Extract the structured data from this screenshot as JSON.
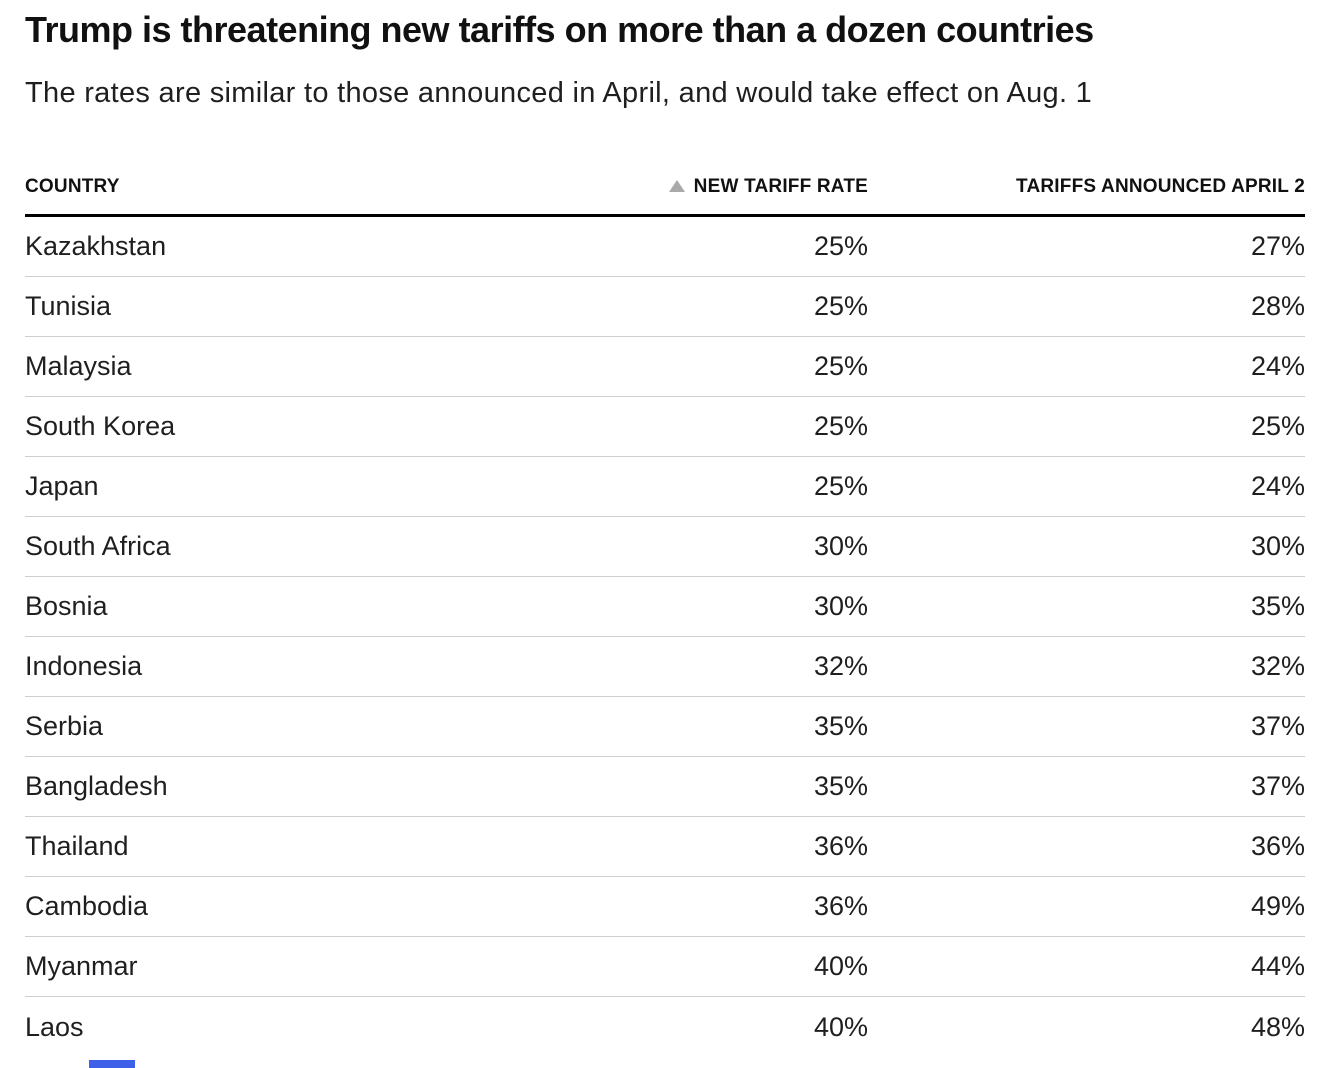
{
  "header": {
    "title": "Trump is threatening new tariffs on more than a dozen countries",
    "subtitle": "The rates are similar to those announced in April, and would take effect on Aug. 1"
  },
  "chart_data": {
    "type": "table",
    "title": "Trump is threatening new tariffs on more than a dozen countries",
    "subtitle": "The rates are similar to those announced in April, and would take effect on Aug. 1",
    "columns": [
      "COUNTRY",
      "NEW TARIFF RATE",
      "TARIFFS ANNOUNCED APRIL 2"
    ],
    "sort": {
      "column": "NEW TARIFF RATE",
      "direction": "ascending",
      "icon": "triangle-up-icon"
    },
    "rows": [
      {
        "country": "Kazakhstan",
        "new_tariff_rate": "25%",
        "tariffs_announced_april_2": "27%"
      },
      {
        "country": "Tunisia",
        "new_tariff_rate": "25%",
        "tariffs_announced_april_2": "28%"
      },
      {
        "country": "Malaysia",
        "new_tariff_rate": "25%",
        "tariffs_announced_april_2": "24%"
      },
      {
        "country": "South Korea",
        "new_tariff_rate": "25%",
        "tariffs_announced_april_2": "25%"
      },
      {
        "country": "Japan",
        "new_tariff_rate": "25%",
        "tariffs_announced_april_2": "24%"
      },
      {
        "country": "South Africa",
        "new_tariff_rate": "30%",
        "tariffs_announced_april_2": "30%"
      },
      {
        "country": "Bosnia",
        "new_tariff_rate": "30%",
        "tariffs_announced_april_2": "35%"
      },
      {
        "country": "Indonesia",
        "new_tariff_rate": "32%",
        "tariffs_announced_april_2": "32%"
      },
      {
        "country": "Serbia",
        "new_tariff_rate": "35%",
        "tariffs_announced_april_2": "37%"
      },
      {
        "country": "Bangladesh",
        "new_tariff_rate": "35%",
        "tariffs_announced_april_2": "37%"
      },
      {
        "country": "Thailand",
        "new_tariff_rate": "36%",
        "tariffs_announced_april_2": "36%"
      },
      {
        "country": "Cambodia",
        "new_tariff_rate": "36%",
        "tariffs_announced_april_2": "49%"
      },
      {
        "country": "Myanmar",
        "new_tariff_rate": "40%",
        "tariffs_announced_april_2": "44%"
      },
      {
        "country": "Laos",
        "new_tariff_rate": "40%",
        "tariffs_announced_april_2": "48%"
      }
    ]
  },
  "colors": {
    "title": "#111111",
    "text": "#1f1f1f",
    "header_rule": "#000000",
    "row_divider": "#cfcfcf",
    "sort_triangle": "#a9a9a9",
    "partial_blue_element": "#3E5FE8",
    "background": "#ffffff"
  }
}
